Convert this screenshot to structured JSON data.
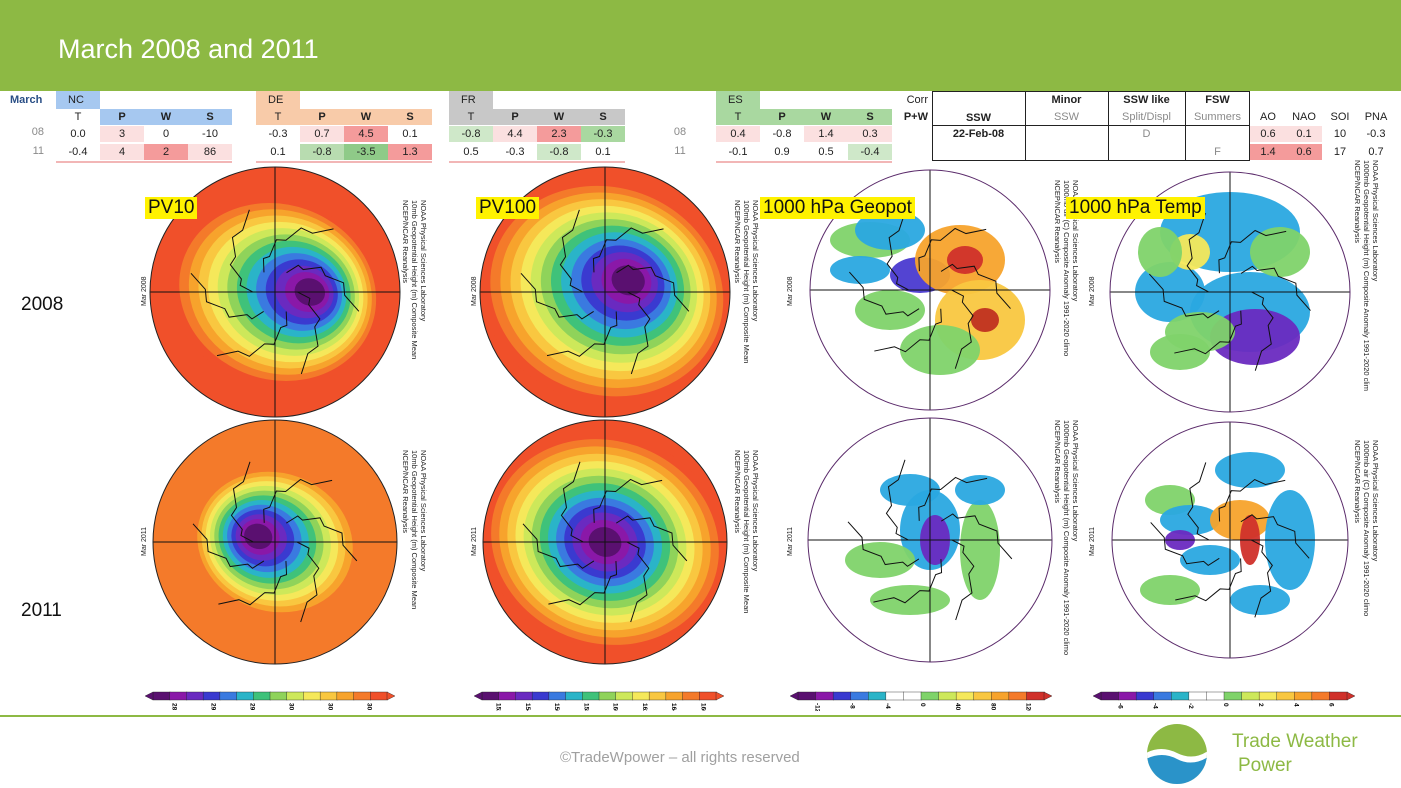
{
  "header": {
    "title": "March 2008 and 2011"
  },
  "table": {
    "month_label": "March",
    "row_labels": [
      "08",
      "11"
    ],
    "regions": [
      {
        "name": "NC",
        "name_bg": "#a6c8f0",
        "cols": [
          "T",
          "P",
          "W",
          "S"
        ],
        "colbg": [
          "#ffffff",
          "#a6c8f0",
          "#a6c8f0",
          "#a6c8f0"
        ],
        "rows": [
          [
            "0.0",
            "3",
            "0",
            "-10"
          ],
          [
            "-0.4",
            "4",
            "2",
            "86"
          ]
        ],
        "cellbg": [
          [
            "#ffffff",
            "#fbe0e0",
            "#ffffff",
            "#ffffff"
          ],
          [
            "#ffffff",
            "#fbe0e0",
            "#f49b9b",
            "#fbe0e0"
          ]
        ]
      },
      {
        "name": "DE",
        "name_bg": "#f8cba9",
        "cols": [
          "T",
          "P",
          "W",
          "S"
        ],
        "colbg": [
          "#f8cba9",
          "#f8cba9",
          "#f8cba9",
          "#f8cba9"
        ],
        "rows": [
          [
            "-0.3",
            "0.7",
            "4.5",
            "0.1"
          ],
          [
            "0.1",
            "-0.8",
            "-3.5",
            "1.3"
          ]
        ],
        "cellbg": [
          [
            "#ffffff",
            "#fbe0e0",
            "#f49b9b",
            "#ffffff"
          ],
          [
            "#ffffff",
            "#b8dcb0",
            "#8fca88",
            "#f49b9b"
          ]
        ]
      },
      {
        "name": "FR",
        "name_bg": "#c8c8c8",
        "cols": [
          "T",
          "P",
          "W",
          "S"
        ],
        "colbg": [
          "#c8c8c8",
          "#c8c8c8",
          "#c8c8c8",
          "#c8c8c8"
        ],
        "rows": [
          [
            "-0.8",
            "4.4",
            "2.3",
            "-0.3"
          ],
          [
            "0.5",
            "-0.3",
            "-0.8",
            "0.1"
          ]
        ],
        "cellbg": [
          [
            "#cfe8c9",
            "#fbe0e0",
            "#f49b9b",
            "#a9d8a0"
          ],
          [
            "#ffffff",
            "#ffffff",
            "#cfe8c9",
            "#ffffff"
          ]
        ]
      },
      {
        "name": "ES",
        "name_bg": "#a9d8a0",
        "cols": [
          "T",
          "P",
          "W",
          "S"
        ],
        "colbg": [
          "#a9d8a0",
          "#a9d8a0",
          "#a9d8a0",
          "#a9d8a0"
        ],
        "rows": [
          [
            "0.4",
            "-0.8",
            "1.4",
            "0.3"
          ],
          [
            "-0.1",
            "0.9",
            "0.5",
            "-0.4"
          ]
        ],
        "cellbg": [
          [
            "#fbe0e0",
            "#ffffff",
            "#fbe0e0",
            "#fbe0e0"
          ],
          [
            "#ffffff",
            "#ffffff",
            "#ffffff",
            "#cfe8c9"
          ]
        ]
      }
    ],
    "corr": {
      "label1": "Corr",
      "label2": "P+W"
    },
    "ssw": {
      "headers": [
        "SSW",
        "Minor",
        "SSW like",
        "FSW"
      ],
      "subheaders": [
        "",
        "SSW",
        "Split/Displ",
        "Summers"
      ],
      "row08": [
        "22-Feb-08",
        "",
        "D",
        ""
      ],
      "row11": [
        "",
        "",
        "",
        "F"
      ]
    },
    "indices": {
      "cols": [
        "AO",
        "NAO",
        "SOI",
        "PNA"
      ],
      "row08": [
        "0.6",
        "0.1",
        "10",
        "-0.3"
      ],
      "row11": [
        "1.4",
        "0.6",
        "17",
        "0.7"
      ],
      "bg08": [
        "#fbe0e0",
        "#fbe0e0",
        "#ffffff",
        "#ffffff"
      ],
      "bg11": [
        "#f49b9b",
        "#f49b9b",
        "#ffffff",
        "#ffffff"
      ]
    }
  },
  "years": [
    "2008",
    "2011"
  ],
  "map_labels": [
    "PV10",
    "PV100",
    "1000 hPa Geopot",
    "1000 hPa Temp"
  ],
  "map_side_text": {
    "m1": [
      "NCEP/NCAR Reanalysis",
      "10mb Geopotential Height (m) Composite Mean",
      "NOAA Physical Sciences Laboratory"
    ],
    "m2": [
      "NCEP/NCAR Reanalysis",
      "100mb Geopotential Height (m) Composite Mean",
      "NOAA Physical Sciences Laboratory"
    ],
    "m3": [
      "NCEP/NCAR Reanalysis",
      "1000mb air (C) Composite Anomaly 1991-2020 climo",
      "NOAA Physical Sciences Laboratory"
    ],
    "m3b": [
      "NCEP/NCAR Reanalysis",
      "1000mb Geopotential Height (m) Composite Anomaly 1991-2020 climo",
      "NOAA Physical Sciences Laboratory"
    ],
    "m4": [
      "NCEP/NCAR Reanalysis",
      "1000mb Geopotential Height (m) Composite Anomaly 1991-2020 clim",
      "NOAA Physical Sciences Laboratory"
    ],
    "m4b": [
      "NCEP/NCAR Reanalysis",
      "1000mb air (C) Composite Anomaly 1991-2020 climo",
      "NOAA Physical Sciences Laboratory"
    ],
    "date08": "Mar 2008",
    "date11": "Mar 2011"
  },
  "colorbars": [
    {
      "ticks": [
        "28",
        "29",
        "29",
        "30",
        "30",
        "30"
      ]
    },
    {
      "ticks": [
        "152",
        "154",
        "156",
        "158",
        "160",
        "162",
        "164",
        "166"
      ]
    },
    {
      "ticks": [
        "-12",
        "-8",
        "-4",
        "0",
        "40",
        "80",
        "120"
      ]
    },
    {
      "ticks": [
        "-6",
        "-4",
        "-2",
        "0",
        "2",
        "4",
        "6"
      ]
    }
  ],
  "footer": {
    "copyright": "©TradeWpower – all rights reserved",
    "logo_line1": "Trade Weather",
    "logo_line2": "Power"
  },
  "colors": {
    "brand_green": "#8db944",
    "logo_blue": "#2a93c9"
  }
}
